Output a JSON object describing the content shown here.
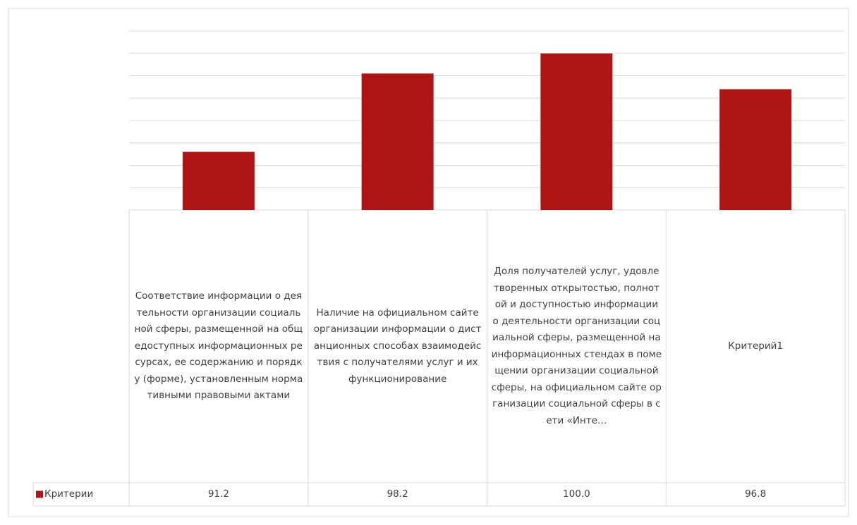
{
  "chart_data": {
    "type": "bar",
    "categories": [
      "Соответствие информации о деятельности организации социальной сферы, размещенной на общедоступных информационных ресурсах, ее содержанию и порядку (форме), установленным нормативными правовыми актами",
      "Наличие на официальном сайте организации информации о дистанционных способах взаимодействия с получателями услуг и их функционирование",
      "Доля получателей услуг, удовлетворенных открытостью, полнотой и доступностью информации о деятельности организации социальной сферы, размещенной на информационных стендах в помещении организации социальной сферы, на официальном сайте организации социальной сферы в сети «Инте…",
      "Критерий1"
    ],
    "series": [
      {
        "name": "Критерии",
        "color": "#b01515",
        "values": [
          91.2,
          98.2,
          100,
          96.8
        ],
        "value_labels": [
          "91.2",
          "98.2",
          "100.0",
          "96.8"
        ]
      }
    ],
    "ylim": [
      86,
      102
    ],
    "yticks": [
      86,
      88,
      90,
      92,
      94,
      96,
      98,
      100,
      102
    ],
    "grid": true
  }
}
